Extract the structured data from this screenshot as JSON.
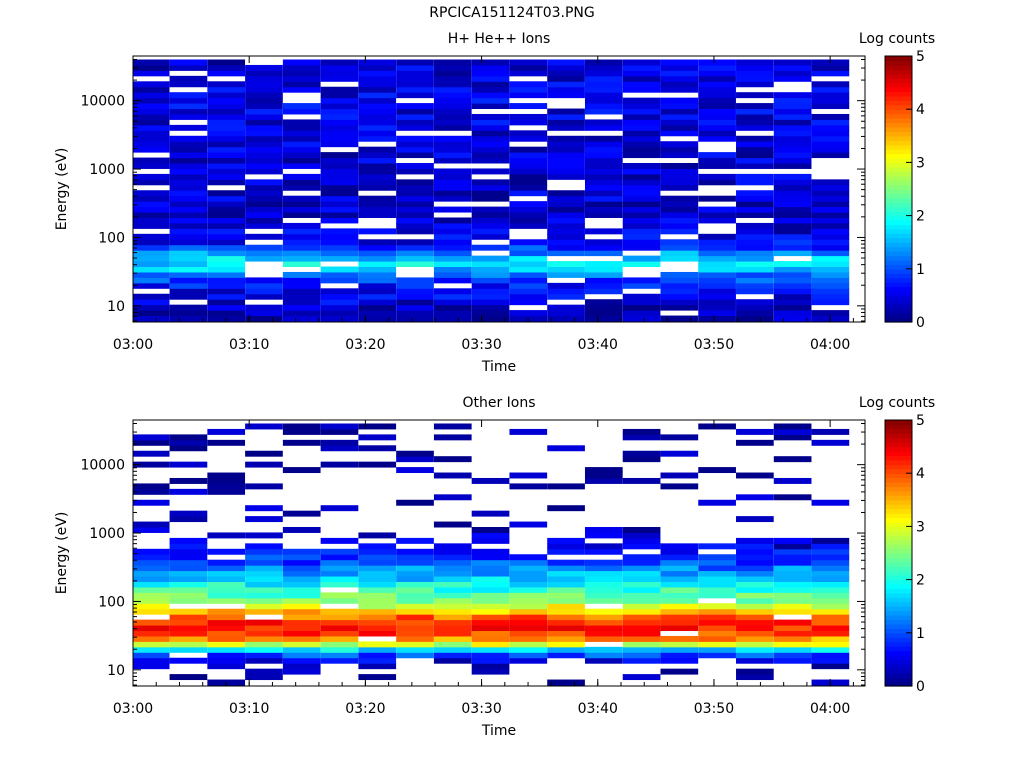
{
  "figure_title": "RPCICA151124T03.PNG",
  "colormap": [
    "#000080",
    "#0000ff",
    "#0080ff",
    "#00ffff",
    "#80ff80",
    "#ffff00",
    "#ff8000",
    "#ff0000",
    "#800000"
  ],
  "chart_data": [
    {
      "type": "heatmap",
      "title": "H+ He++ Ions",
      "xlabel": "Time",
      "ylabel": "Energy (eV)",
      "colorbar_label": "Log counts",
      "colorbar_ticks": [
        "0",
        "1",
        "2",
        "3",
        "4",
        "5"
      ],
      "clim": [
        0,
        5
      ],
      "xlim": [
        "03:00",
        "04:03"
      ],
      "x_ticks": [
        "03:00",
        "03:10",
        "03:20",
        "03:30",
        "03:40",
        "03:50",
        "04:00"
      ],
      "y_scale": "log",
      "ylim": [
        5.8,
        45000
      ],
      "y_ticks": [
        "10",
        "100",
        "1000",
        "10000"
      ],
      "grid": false,
      "time_bins_min": [
        1.5,
        4.75,
        8.0,
        11.25,
        14.5,
        17.75,
        21.0,
        24.25,
        27.5,
        30.75,
        34.0,
        37.25,
        40.5,
        43.75,
        47.0,
        50.25,
        53.5,
        56.75,
        60.0
      ],
      "energy_profile": [
        {
          "energy_eV": 8,
          "log_counts": 0.2
        },
        {
          "energy_eV": 12,
          "log_counts": 0.5
        },
        {
          "energy_eV": 18,
          "log_counts": 0.6
        },
        {
          "energy_eV": 26,
          "log_counts": 1.0
        },
        {
          "energy_eV": 35,
          "log_counts": 1.6
        },
        {
          "energy_eV": 45,
          "log_counts": 1.8
        },
        {
          "energy_eV": 60,
          "log_counts": 1.3
        },
        {
          "energy_eV": 80,
          "log_counts": 0.6
        },
        {
          "energy_eV": 150,
          "log_counts": 0.4
        },
        {
          "energy_eV": 1000,
          "log_counts": 0.4
        },
        {
          "energy_eV": 10000,
          "log_counts": 0.5
        },
        {
          "energy_eV": 35000,
          "log_counts": 0.4
        }
      ]
    },
    {
      "type": "heatmap",
      "title": "Other Ions",
      "xlabel": "Time",
      "ylabel": "Energy (eV)",
      "colorbar_label": "Log counts",
      "colorbar_ticks": [
        "0",
        "1",
        "2",
        "3",
        "4",
        "5"
      ],
      "clim": [
        0,
        5
      ],
      "xlim": [
        "03:00",
        "04:03"
      ],
      "x_ticks": [
        "03:00",
        "03:10",
        "03:20",
        "03:30",
        "03:40",
        "03:50",
        "04:00"
      ],
      "y_scale": "log",
      "ylim": [
        5.8,
        45000
      ],
      "y_ticks": [
        "10",
        "100",
        "1000",
        "10000"
      ],
      "grid": false,
      "time_bins_min": [
        1.5,
        4.75,
        8.0,
        11.25,
        14.5,
        17.75,
        21.0,
        24.25,
        27.5,
        30.75,
        34.0,
        37.25,
        40.5,
        43.75,
        47.0,
        50.25,
        53.5,
        56.75,
        60.0
      ],
      "energy_profile": [
        {
          "energy_eV": 8,
          "log_counts": 0.1
        },
        {
          "energy_eV": 12,
          "log_counts": 0.2
        },
        {
          "energy_eV": 16,
          "log_counts": 0.8
        },
        {
          "energy_eV": 20,
          "log_counts": 1.8
        },
        {
          "energy_eV": 25,
          "log_counts": 3.2
        },
        {
          "energy_eV": 32,
          "log_counts": 4.0
        },
        {
          "energy_eV": 40,
          "log_counts": 4.2
        },
        {
          "energy_eV": 55,
          "log_counts": 4.1
        },
        {
          "energy_eV": 75,
          "log_counts": 3.3
        },
        {
          "energy_eV": 100,
          "log_counts": 2.6
        },
        {
          "energy_eV": 150,
          "log_counts": 2.1
        },
        {
          "energy_eV": 250,
          "log_counts": 1.5
        },
        {
          "energy_eV": 400,
          "log_counts": 0.9
        },
        {
          "energy_eV": 600,
          "log_counts": 0.5
        },
        {
          "energy_eV": 1200,
          "log_counts": 0.2
        },
        {
          "energy_eV": 35000,
          "log_counts": 0.1
        }
      ]
    }
  ]
}
